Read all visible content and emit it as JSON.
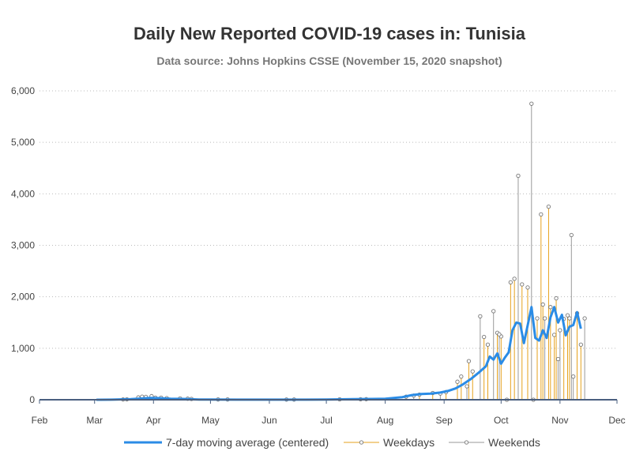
{
  "chart_data": {
    "type": "line",
    "title": "Daily New Reported COVID-19 cases in: Tunisia",
    "subtitle": "Data source: Johns Hopkins CSSE (November 15, 2020 snapshot)",
    "xlabel": "",
    "ylabel": "",
    "x_tick_labels": [
      "Feb",
      "Mar",
      "Apr",
      "May",
      "Jun",
      "Jul",
      "Aug",
      "Sep",
      "Oct",
      "Nov",
      "Dec"
    ],
    "y_tick_labels": [
      "0",
      "1,000",
      "2,000",
      "3,000",
      "4,000",
      "5,000",
      "6,000"
    ],
    "x_range": [
      "2020-02-01",
      "2020-12-01"
    ],
    "ylim": [
      0,
      6000
    ],
    "grid": "horizontal dotted",
    "legend_placement": "bottom",
    "colors": {
      "moving_average": "#2b8ce6",
      "weekdays": "#e6a21e",
      "weekends": "#999999",
      "axis": "#4a5f7f"
    },
    "series": [
      {
        "name": "7-day moving average (centered)",
        "style": "thick line",
        "points": [
          [
            "2020-03-02",
            0
          ],
          [
            "2020-03-10",
            1
          ],
          [
            "2020-03-20",
            10
          ],
          [
            "2020-03-26",
            25
          ],
          [
            "2020-03-30",
            35
          ],
          [
            "2020-04-04",
            30
          ],
          [
            "2020-04-10",
            20
          ],
          [
            "2020-04-17",
            15
          ],
          [
            "2020-04-25",
            5
          ],
          [
            "2020-05-01",
            3
          ],
          [
            "2020-05-15",
            2
          ],
          [
            "2020-06-01",
            1
          ],
          [
            "2020-06-20",
            2
          ],
          [
            "2020-07-01",
            5
          ],
          [
            "2020-07-15",
            10
          ],
          [
            "2020-07-25",
            15
          ],
          [
            "2020-08-01",
            20
          ],
          [
            "2020-08-10",
            50
          ],
          [
            "2020-08-15",
            90
          ],
          [
            "2020-08-20",
            110
          ],
          [
            "2020-08-25",
            120
          ],
          [
            "2020-08-30",
            140
          ],
          [
            "2020-09-03",
            170
          ],
          [
            "2020-09-07",
            220
          ],
          [
            "2020-09-11",
            300
          ],
          [
            "2020-09-15",
            400
          ],
          [
            "2020-09-19",
            520
          ],
          [
            "2020-09-23",
            650
          ],
          [
            "2020-09-25",
            840
          ],
          [
            "2020-09-27",
            780
          ],
          [
            "2020-09-29",
            900
          ],
          [
            "2020-10-01",
            700
          ],
          [
            "2020-10-03",
            820
          ],
          [
            "2020-10-05",
            920
          ],
          [
            "2020-10-07",
            1350
          ],
          [
            "2020-10-09",
            1500
          ],
          [
            "2020-10-11",
            1480
          ],
          [
            "2020-10-13",
            1100
          ],
          [
            "2020-10-15",
            1450
          ],
          [
            "2020-10-17",
            1800
          ],
          [
            "2020-10-19",
            1200
          ],
          [
            "2020-10-21",
            1150
          ],
          [
            "2020-10-23",
            1350
          ],
          [
            "2020-10-25",
            1200
          ],
          [
            "2020-10-27",
            1600
          ],
          [
            "2020-10-29",
            1800
          ],
          [
            "2020-10-31",
            1500
          ],
          [
            "2020-11-02",
            1650
          ],
          [
            "2020-11-04",
            1250
          ],
          [
            "2020-11-06",
            1420
          ],
          [
            "2020-11-08",
            1450
          ],
          [
            "2020-11-10",
            1700
          ],
          [
            "2020-11-12",
            1380
          ]
        ]
      },
      {
        "name": "Weekdays",
        "style": "needle with circle marker",
        "points": [
          [
            "2020-03-16",
            5
          ],
          [
            "2020-03-18",
            8
          ],
          [
            "2020-03-24",
            45
          ],
          [
            "2020-03-26",
            60
          ],
          [
            "2020-03-31",
            70
          ],
          [
            "2020-04-02",
            40
          ],
          [
            "2020-04-08",
            30
          ],
          [
            "2020-04-15",
            25
          ],
          [
            "2020-04-21",
            15
          ],
          [
            "2020-05-05",
            5
          ],
          [
            "2020-06-10",
            3
          ],
          [
            "2020-07-08",
            8
          ],
          [
            "2020-07-22",
            12
          ],
          [
            "2020-08-12",
            60
          ],
          [
            "2020-08-19",
            100
          ],
          [
            "2020-08-26",
            130
          ],
          [
            "2020-09-02",
            150
          ],
          [
            "2020-09-08",
            350
          ],
          [
            "2020-09-10",
            450
          ],
          [
            "2020-09-14",
            750
          ],
          [
            "2020-09-16",
            550
          ],
          [
            "2020-09-22",
            1220
          ],
          [
            "2020-09-24",
            1070
          ],
          [
            "2020-09-29",
            1300
          ],
          [
            "2020-10-01",
            1230
          ],
          [
            "2020-10-06",
            2280
          ],
          [
            "2020-10-08",
            2350
          ],
          [
            "2020-10-12",
            2240
          ],
          [
            "2020-10-15",
            2180
          ],
          [
            "2020-10-20",
            1580
          ],
          [
            "2020-10-22",
            3600
          ],
          [
            "2020-10-23",
            1850
          ],
          [
            "2020-10-26",
            3750
          ],
          [
            "2020-10-27",
            1800
          ],
          [
            "2020-10-29",
            1260
          ],
          [
            "2020-10-30",
            1970
          ],
          [
            "2020-11-03",
            1570
          ],
          [
            "2020-11-05",
            1640
          ],
          [
            "2020-11-06",
            1580
          ],
          [
            "2020-11-10",
            1680
          ],
          [
            "2020-11-12",
            1070
          ]
        ]
      },
      {
        "name": "Weekends",
        "style": "needle with circle marker",
        "points": [
          [
            "2020-03-28",
            55
          ],
          [
            "2020-04-05",
            40
          ],
          [
            "2020-04-19",
            20
          ],
          [
            "2020-05-10",
            5
          ],
          [
            "2020-06-14",
            3
          ],
          [
            "2020-07-19",
            10
          ],
          [
            "2020-08-16",
            80
          ],
          [
            "2020-08-30",
            120
          ],
          [
            "2020-09-13",
            260
          ],
          [
            "2020-09-20",
            1620
          ],
          [
            "2020-09-27",
            1720
          ],
          [
            "2020-09-30",
            1270
          ],
          [
            "2020-10-04",
            0
          ],
          [
            "2020-10-10",
            4350
          ],
          [
            "2020-10-17",
            5750
          ],
          [
            "2020-10-18",
            0
          ],
          [
            "2020-10-24",
            1580
          ],
          [
            "2020-10-31",
            790
          ],
          [
            "2020-11-01",
            1350
          ],
          [
            "2020-11-07",
            3200
          ],
          [
            "2020-11-08",
            450
          ],
          [
            "2020-11-14",
            1580
          ]
        ]
      }
    ]
  }
}
